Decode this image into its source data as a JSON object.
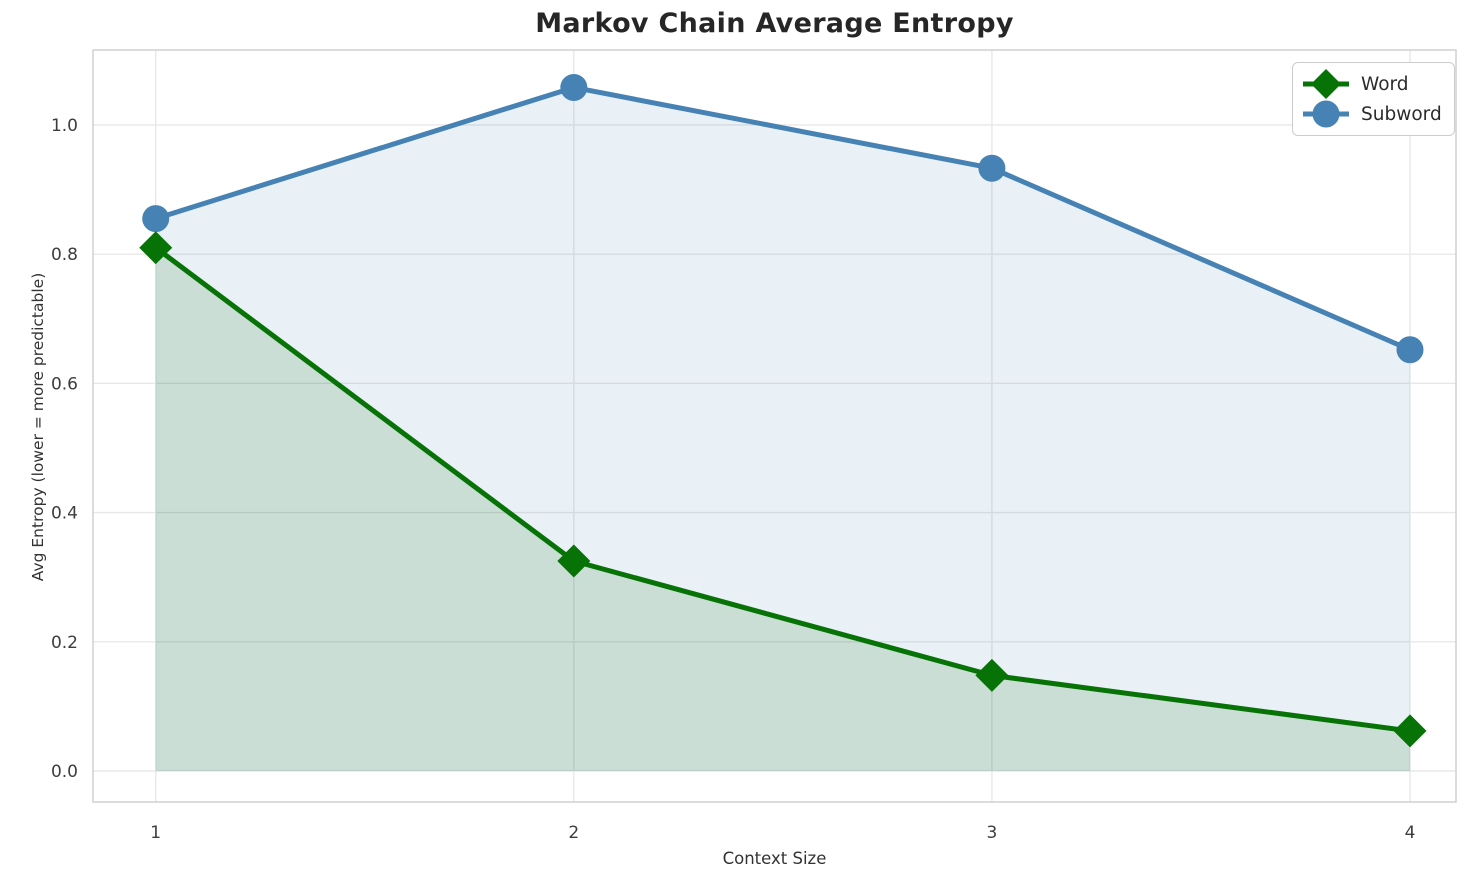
{
  "title": "Markov Chain Average Entropy",
  "chart_data": {
    "type": "line",
    "x": [
      1,
      2,
      3,
      4
    ],
    "series": [
      {
        "name": "Word",
        "values": [
          0.81,
          0.325,
          0.148,
          0.062
        ],
        "color": "#077307",
        "fill_color": "rgba(0,100,0,0.13)",
        "marker": "diamond"
      },
      {
        "name": "Subword",
        "values": [
          0.855,
          1.058,
          0.933,
          0.652
        ],
        "color": "#4682b4",
        "fill_color": "rgba(70,130,180,0.12)",
        "marker": "circle"
      }
    ],
    "title": "Markov Chain Average Entropy",
    "xlabel": "Context Size",
    "ylabel": "Avg Entropy (lower = more predictable)",
    "x_tick_labels": [
      "1",
      "2",
      "3",
      "4"
    ],
    "x_tick_values": [
      1,
      2,
      3,
      4
    ],
    "y_tick_labels": [
      "0.0",
      "0.2",
      "0.4",
      "0.6",
      "0.8",
      "1.0"
    ],
    "y_tick_values": [
      0.0,
      0.2,
      0.4,
      0.6,
      0.8,
      1.0
    ],
    "xlim": [
      0.85,
      4.11
    ],
    "ylim": [
      -0.048,
      1.116
    ],
    "grid": true,
    "area_fill_baseline": 0,
    "legend_position": "upper right",
    "grid_color": "#e8e8e8",
    "border_color": "#d0d0d0",
    "tick_label_color": "#3d3d3d"
  },
  "legend": {
    "items": [
      {
        "label": "Word"
      },
      {
        "label": "Subword"
      }
    ]
  }
}
